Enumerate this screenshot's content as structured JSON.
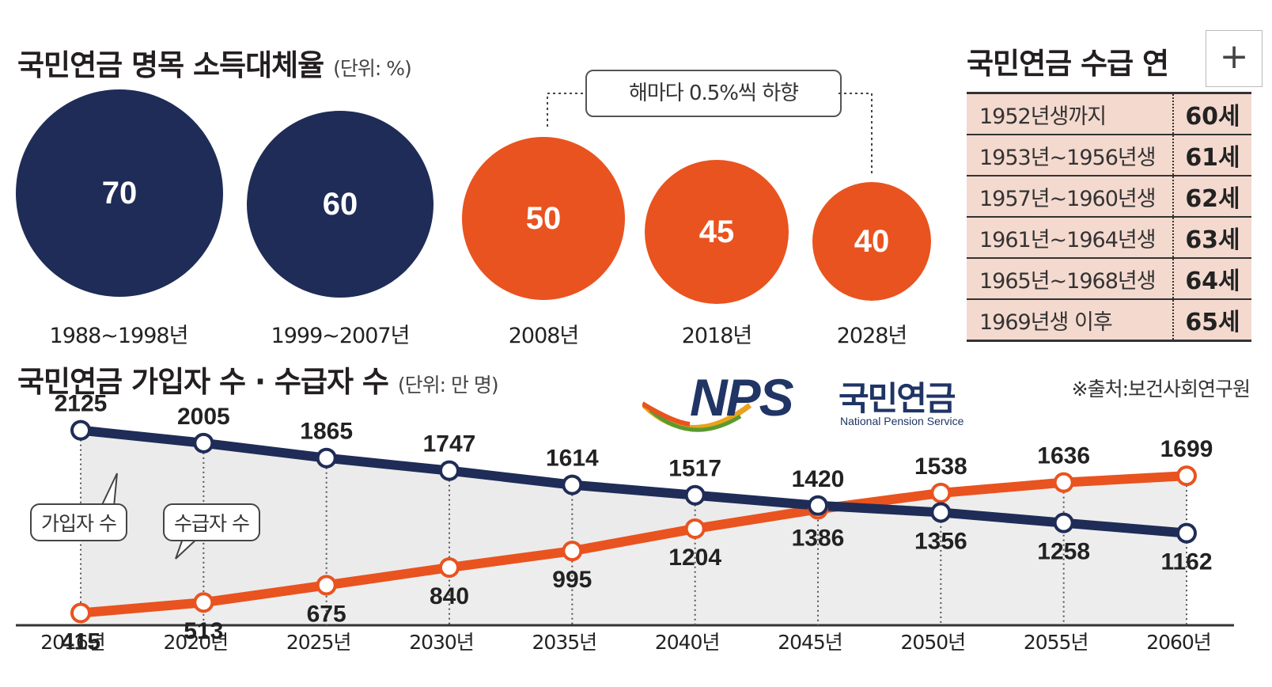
{
  "replacement_rate": {
    "title": "국민연금 명목 소득대체율",
    "unit": "(단위: %)",
    "callout": "해마다 0.5%씩 하향",
    "items": [
      {
        "period": "1988~1998년",
        "value": "70",
        "color": "#1f2c57"
      },
      {
        "period": "1999~2007년",
        "value": "60",
        "color": "#1f2c57"
      },
      {
        "period": "2008년",
        "value": "50",
        "color": "#e9531f"
      },
      {
        "period": "2018년",
        "value": "45",
        "color": "#e9531f"
      },
      {
        "period": "2028년",
        "value": "40",
        "color": "#e9531f"
      }
    ]
  },
  "pension_age": {
    "title": "국민연금 수급 연",
    "rows": [
      {
        "cohort": "1952년생까지",
        "age": "60세"
      },
      {
        "cohort": "1953년~1956년생",
        "age": "61세"
      },
      {
        "cohort": "1957년~1960년생",
        "age": "62세"
      },
      {
        "cohort": "1961년~1964년생",
        "age": "63세"
      },
      {
        "cohort": "1965년~1968년생",
        "age": "64세"
      },
      {
        "cohort": "1969년생 이후",
        "age": "65세"
      }
    ]
  },
  "toolbar": {
    "expand_label": "+"
  },
  "logo": {
    "nps": "NPS",
    "korean": "국민연금",
    "english": "National Pension Service"
  },
  "source": "※출처:보건사회연구원",
  "chart_data": {
    "type": "line",
    "title": "국민연금 가입자 수 · 수급자 수",
    "unit": "(단위: 만 명)",
    "categories": [
      "2016년",
      "2020년",
      "2025년",
      "2030년",
      "2035년",
      "2040년",
      "2045년",
      "2050년",
      "2055년",
      "2060년"
    ],
    "series": [
      {
        "name": "가입자 수",
        "color": "#1f2c57",
        "values": [
          2125,
          2005,
          1865,
          1747,
          1614,
          1517,
          1420,
          1356,
          1258,
          1162
        ]
      },
      {
        "name": "수급자 수",
        "color": "#e9531f",
        "values": [
          415,
          513,
          675,
          840,
          995,
          1204,
          1386,
          1538,
          1636,
          1699
        ]
      }
    ],
    "ylim": [
      300,
      2300
    ],
    "grid": false,
    "legend": "callout-left"
  }
}
